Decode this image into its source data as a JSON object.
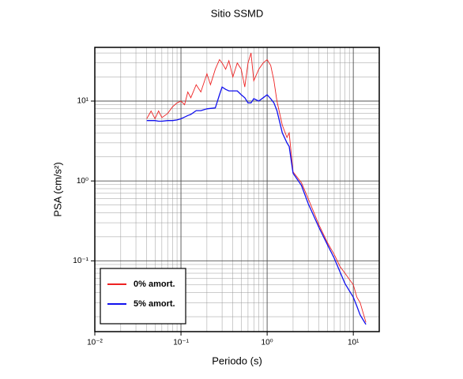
{
  "chart_data": {
    "type": "line",
    "title": "Sitio SSMD",
    "x_label": "Periodo (s)",
    "y_label": "PSA (cm/s²)",
    "x_log": true,
    "y_log": true,
    "grid": true,
    "minor_grid": true,
    "legend": "lower left",
    "xlim": [
      0.01,
      20
    ],
    "ylim": [
      0.013,
      47
    ],
    "xticks": [
      {
        "value": 0.01,
        "label": "10⁻²"
      },
      {
        "value": 0.1,
        "label": "10⁻¹"
      },
      {
        "value": 1,
        "label": "10⁰"
      },
      {
        "value": 10,
        "label": "10¹"
      }
    ],
    "yticks": [
      {
        "value": 0.1,
        "label": "10⁻¹"
      },
      {
        "value": 1,
        "label": "10⁰"
      },
      {
        "value": 10,
        "label": "10¹"
      }
    ],
    "x": [
      0.04,
      0.045,
      0.05,
      0.055,
      0.06,
      0.07,
      0.08,
      0.09,
      0.1,
      0.11,
      0.12,
      0.13,
      0.15,
      0.17,
      0.2,
      0.22,
      0.25,
      0.28,
      0.3,
      0.33,
      0.36,
      0.4,
      0.45,
      0.5,
      0.55,
      0.6,
      0.65,
      0.7,
      0.8,
      0.9,
      1.0,
      1.1,
      1.2,
      1.3,
      1.5,
      1.7,
      1.8,
      2.0,
      2.5,
      3,
      4,
      5,
      6,
      7,
      8,
      10,
      11,
      12,
      14
    ],
    "series": [
      {
        "name": "0% amort.",
        "color": "#ee2222",
        "values": [
          6.0,
          7.5,
          6.0,
          7.5,
          6.2,
          7.0,
          8.5,
          9.5,
          10,
          9,
          13,
          11,
          16,
          13,
          22,
          16,
          25,
          33,
          30,
          25,
          32,
          20,
          30,
          25,
          15,
          30,
          40,
          18,
          25,
          30,
          33,
          28,
          18,
          10,
          5,
          3.5,
          4.0,
          1.3,
          0.95,
          0.6,
          0.28,
          0.17,
          0.12,
          0.085,
          0.07,
          0.05,
          0.035,
          0.03,
          0.017
        ]
      },
      {
        "name": "5% amort.",
        "color": "#1111ee",
        "values": [
          5.7,
          5.7,
          5.7,
          5.6,
          5.6,
          5.7,
          5.7,
          5.8,
          6.0,
          6.3,
          6.6,
          6.8,
          7.6,
          7.6,
          8.0,
          8.1,
          8.2,
          12,
          15,
          14,
          13.4,
          13.4,
          13.4,
          12,
          11,
          9.5,
          9.5,
          10.7,
          10,
          11,
          12,
          10.7,
          9.5,
          7.6,
          4.0,
          3.0,
          2.7,
          1.25,
          0.88,
          0.52,
          0.26,
          0.16,
          0.108,
          0.073,
          0.052,
          0.035,
          0.027,
          0.021,
          0.016
        ]
      }
    ]
  }
}
